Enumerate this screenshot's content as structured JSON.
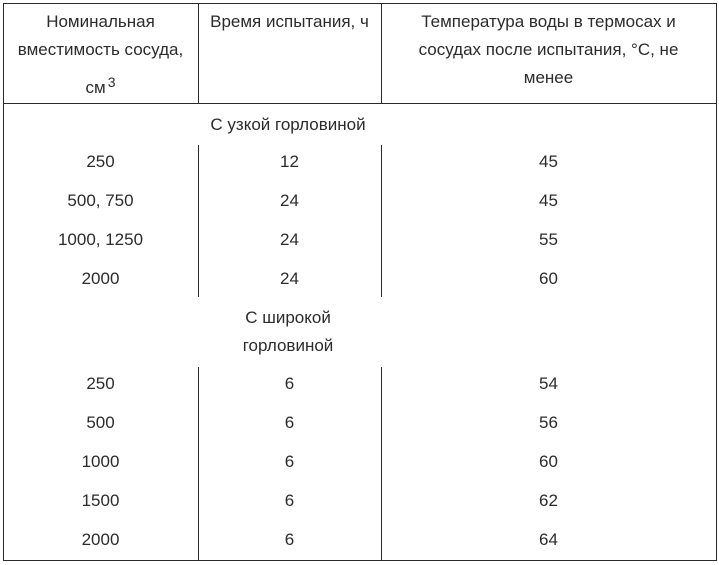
{
  "header": {
    "col1_line1": "Номинальная",
    "col1_line2": "вместимость сосуда,",
    "col1_unit": "см",
    "col1_unit_sup": "3",
    "col2": "Время испытания, ч",
    "col3_line1": "Температура воды в термосах и",
    "col3_line2": "сосудах после испытания, °С, не",
    "col3_line3": "менее"
  },
  "sections": [
    {
      "title_lines": [
        "С узкой горловиной"
      ],
      "rows": [
        [
          "250",
          "12",
          "45"
        ],
        [
          "500, 750",
          "24",
          "45"
        ],
        [
          "1000, 1250",
          "24",
          "55"
        ],
        [
          "2000",
          "24",
          "60"
        ]
      ]
    },
    {
      "title_lines": [
        "С широкой",
        "горловиной"
      ],
      "rows": [
        [
          "250",
          "6",
          "54"
        ],
        [
          "500",
          "6",
          "56"
        ],
        [
          "1000",
          "6",
          "60"
        ],
        [
          "1500",
          "6",
          "62"
        ],
        [
          "2000",
          "6",
          "64"
        ]
      ]
    }
  ]
}
